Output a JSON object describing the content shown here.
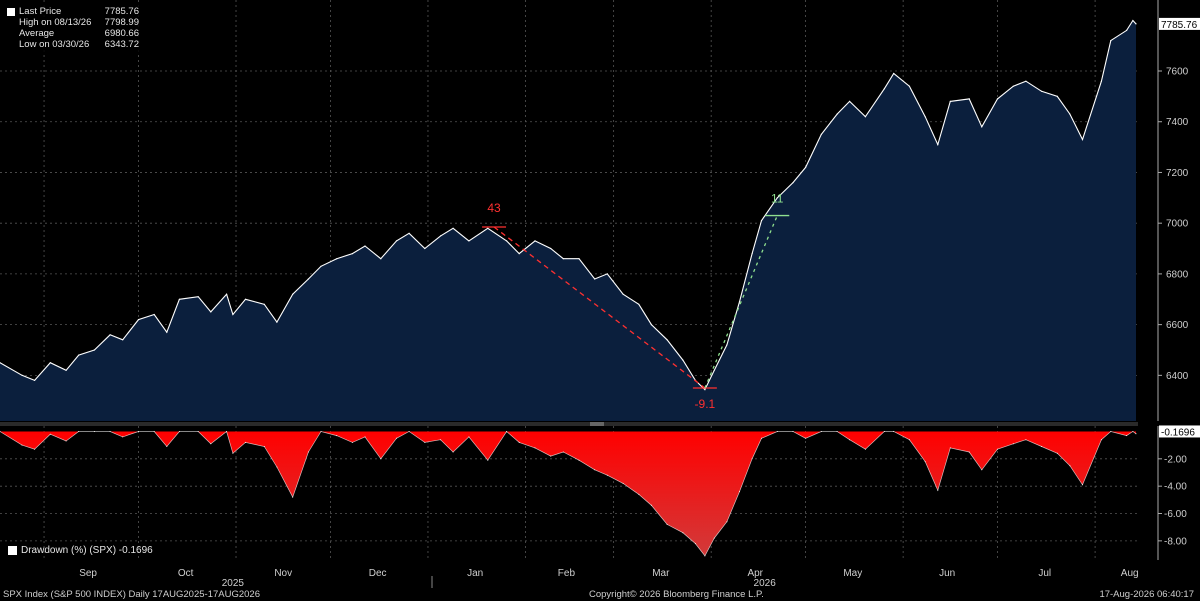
{
  "legend": {
    "items": [
      {
        "label": "Last Price",
        "value": "7785.76"
      },
      {
        "label": "High on 08/13/26",
        "value": "7798.99"
      },
      {
        "label": "Average",
        "value": "6980.66"
      },
      {
        "label": "Low on 03/30/26",
        "value": "6343.72"
      }
    ]
  },
  "drawdown_legend": "Drawdown (%) (SPX) -0.1696",
  "footer": {
    "left": "SPX Index (S&P 500 INDEX) Daily 17AUG2025-17AUG2026",
    "center": "Copyright© 2026 Bloomberg Finance L.P.",
    "right": "17-Aug-2026 06:40:17"
  },
  "colors": {
    "price_fill": "#0b1f3d",
    "price_line": "#ffffff",
    "drawdown_fill": "#e00000",
    "annotation_red": "#ff3030",
    "annotation_green": "#8fe08f",
    "grid": "#555555"
  },
  "chart_data": [
    {
      "type": "area",
      "series_name": "SPX Index (S&P 500 INDEX)",
      "x_range": [
        "2025-08-18",
        "2026-08-14"
      ],
      "ylim": [
        6220,
        7880
      ],
      "yticks": [
        6400,
        6600,
        6800,
        7000,
        7200,
        7400,
        7600
      ],
      "ytick_labels": [
        "6400",
        "6600",
        "6800",
        "7000",
        "7200",
        "7400",
        "7600"
      ],
      "last_price_label": "7785.76",
      "grid": true,
      "months": [
        "Sep",
        "Oct",
        "Nov",
        "Dec",
        "Jan",
        "Feb",
        "Mar",
        "Apr",
        "May",
        "Jun",
        "Jul",
        "Aug"
      ],
      "years": [
        "2025",
        "2026"
      ],
      "points": [
        [
          "2025-08-18",
          6450
        ],
        [
          "2025-08-25",
          6400
        ],
        [
          "2025-08-29",
          6380
        ],
        [
          "2025-09-03",
          6450
        ],
        [
          "2025-09-08",
          6420
        ],
        [
          "2025-09-12",
          6480
        ],
        [
          "2025-09-17",
          6500
        ],
        [
          "2025-09-22",
          6560
        ],
        [
          "2025-09-26",
          6540
        ],
        [
          "2025-10-01",
          6620
        ],
        [
          "2025-10-06",
          6640
        ],
        [
          "2025-10-10",
          6570
        ],
        [
          "2025-10-14",
          6700
        ],
        [
          "2025-10-20",
          6710
        ],
        [
          "2025-10-24",
          6650
        ],
        [
          "2025-10-29",
          6720
        ],
        [
          "2025-10-31",
          6640
        ],
        [
          "2025-11-04",
          6700
        ],
        [
          "2025-11-10",
          6680
        ],
        [
          "2025-11-14",
          6610
        ],
        [
          "2025-11-19",
          6720
        ],
        [
          "2025-11-24",
          6780
        ],
        [
          "2025-11-28",
          6830
        ],
        [
          "2025-12-03",
          6860
        ],
        [
          "2025-12-08",
          6880
        ],
        [
          "2025-12-12",
          6910
        ],
        [
          "2025-12-17",
          6860
        ],
        [
          "2025-12-22",
          6930
        ],
        [
          "2025-12-26",
          6960
        ],
        [
          "2025-12-31",
          6900
        ],
        [
          "2026-01-05",
          6950
        ],
        [
          "2026-01-09",
          6980
        ],
        [
          "2026-01-14",
          6930
        ],
        [
          "2026-01-20",
          6980
        ],
        [
          "2026-01-26",
          6930
        ],
        [
          "2026-01-30",
          6880
        ],
        [
          "2026-02-04",
          6930
        ],
        [
          "2026-02-09",
          6900
        ],
        [
          "2026-02-13",
          6860
        ],
        [
          "2026-02-18",
          6860
        ],
        [
          "2026-02-23",
          6780
        ],
        [
          "2026-02-27",
          6800
        ],
        [
          "2026-03-04",
          6720
        ],
        [
          "2026-03-09",
          6680
        ],
        [
          "2026-03-13",
          6600
        ],
        [
          "2026-03-18",
          6540
        ],
        [
          "2026-03-23",
          6460
        ],
        [
          "2026-03-27",
          6380
        ],
        [
          "2026-03-30",
          6343.72
        ],
        [
          "2026-04-02",
          6420
        ],
        [
          "2026-04-06",
          6520
        ],
        [
          "2026-04-10",
          6690
        ],
        [
          "2026-04-14",
          6880
        ],
        [
          "2026-04-17",
          7010
        ],
        [
          "2026-04-22",
          7100
        ],
        [
          "2026-04-27",
          7160
        ],
        [
          "2026-05-01",
          7220
        ],
        [
          "2026-05-06",
          7350
        ],
        [
          "2026-05-11",
          7430
        ],
        [
          "2026-05-15",
          7480
        ],
        [
          "2026-05-20",
          7420
        ],
        [
          "2026-05-26",
          7530
        ],
        [
          "2026-05-29",
          7590
        ],
        [
          "2026-06-03",
          7540
        ],
        [
          "2026-06-08",
          7420
        ],
        [
          "2026-06-12",
          7310
        ],
        [
          "2026-06-16",
          7480
        ],
        [
          "2026-06-22",
          7490
        ],
        [
          "2026-06-26",
          7380
        ],
        [
          "2026-07-01",
          7490
        ],
        [
          "2026-07-06",
          7540
        ],
        [
          "2026-07-10",
          7560
        ],
        [
          "2026-07-15",
          7520
        ],
        [
          "2026-07-20",
          7500
        ],
        [
          "2026-07-24",
          7430
        ],
        [
          "2026-07-28",
          7330
        ],
        [
          "2026-08-03",
          7560
        ],
        [
          "2026-08-06",
          7720
        ],
        [
          "2026-08-11",
          7760
        ],
        [
          "2026-08-13",
          7798.99
        ],
        [
          "2026-08-14",
          7785.76
        ]
      ],
      "annotations": [
        {
          "label": "43",
          "type": "peak",
          "date": "2026-01-22",
          "value": 6985
        },
        {
          "label": "-9.1",
          "type": "trough",
          "date": "2026-03-30",
          "value": 6350
        },
        {
          "label": "11",
          "type": "rebound",
          "date": "2026-04-22",
          "value": 7030
        }
      ]
    },
    {
      "type": "area",
      "series_name": "Drawdown (%) (SPX)",
      "ylim": [
        -9.4,
        0.4
      ],
      "yticks": [
        -2,
        -4,
        -6,
        -8
      ],
      "ytick_labels": [
        "-2.00",
        "-4.00",
        "-6.00",
        "-8.00"
      ],
      "last_value_label": "-0.1696",
      "points": [
        [
          "2025-08-18",
          0
        ],
        [
          "2025-08-25",
          -1.0
        ],
        [
          "2025-08-29",
          -1.3
        ],
        [
          "2025-09-03",
          -0.2
        ],
        [
          "2025-09-08",
          -0.7
        ],
        [
          "2025-09-12",
          0
        ],
        [
          "2025-09-17",
          0
        ],
        [
          "2025-09-22",
          0
        ],
        [
          "2025-09-26",
          -0.4
        ],
        [
          "2025-10-01",
          0
        ],
        [
          "2025-10-06",
          0
        ],
        [
          "2025-10-10",
          -1.1
        ],
        [
          "2025-10-14",
          0
        ],
        [
          "2025-10-20",
          0
        ],
        [
          "2025-10-24",
          -0.9
        ],
        [
          "2025-10-29",
          0
        ],
        [
          "2025-10-31",
          -1.6
        ],
        [
          "2025-11-04",
          -0.8
        ],
        [
          "2025-11-10",
          -1.1
        ],
        [
          "2025-11-14",
          -2.6
        ],
        [
          "2025-11-19",
          -4.8
        ],
        [
          "2025-11-24",
          -1.5
        ],
        [
          "2025-11-28",
          0
        ],
        [
          "2025-12-03",
          -0.3
        ],
        [
          "2025-12-08",
          -0.8
        ],
        [
          "2025-12-12",
          -0.4
        ],
        [
          "2025-12-17",
          -2.0
        ],
        [
          "2025-12-22",
          -0.5
        ],
        [
          "2025-12-26",
          0
        ],
        [
          "2025-12-31",
          -0.8
        ],
        [
          "2026-01-05",
          -0.6
        ],
        [
          "2026-01-09",
          -1.5
        ],
        [
          "2026-01-14",
          -0.4
        ],
        [
          "2026-01-20",
          -2.1
        ],
        [
          "2026-01-26",
          0
        ],
        [
          "2026-01-30",
          -0.8
        ],
        [
          "2026-02-04",
          -1.2
        ],
        [
          "2026-02-09",
          -1.8
        ],
        [
          "2026-02-13",
          -1.5
        ],
        [
          "2026-02-18",
          -2.1
        ],
        [
          "2026-02-23",
          -2.8
        ],
        [
          "2026-02-27",
          -3.2
        ],
        [
          "2026-03-04",
          -3.8
        ],
        [
          "2026-03-09",
          -4.6
        ],
        [
          "2026-03-13",
          -5.4
        ],
        [
          "2026-03-18",
          -6.8
        ],
        [
          "2026-03-23",
          -7.4
        ],
        [
          "2026-03-27",
          -8.2
        ],
        [
          "2026-03-30",
          -9.1
        ],
        [
          "2026-04-02",
          -7.8
        ],
        [
          "2026-04-06",
          -6.6
        ],
        [
          "2026-04-10",
          -4.4
        ],
        [
          "2026-04-14",
          -2.0
        ],
        [
          "2026-04-17",
          -0.5
        ],
        [
          "2026-04-22",
          0
        ],
        [
          "2026-04-27",
          0
        ],
        [
          "2026-05-01",
          -0.5
        ],
        [
          "2026-05-06",
          0
        ],
        [
          "2026-05-11",
          0
        ],
        [
          "2026-05-15",
          -0.6
        ],
        [
          "2026-05-20",
          -1.3
        ],
        [
          "2026-05-26",
          0
        ],
        [
          "2026-05-29",
          0
        ],
        [
          "2026-06-03",
          -0.6
        ],
        [
          "2026-06-08",
          -2.2
        ],
        [
          "2026-06-12",
          -4.3
        ],
        [
          "2026-06-16",
          -1.2
        ],
        [
          "2026-06-22",
          -1.5
        ],
        [
          "2026-06-26",
          -2.8
        ],
        [
          "2026-07-01",
          -1.3
        ],
        [
          "2026-07-06",
          -0.9
        ],
        [
          "2026-07-10",
          -0.6
        ],
        [
          "2026-07-15",
          -1.1
        ],
        [
          "2026-07-20",
          -1.6
        ],
        [
          "2026-07-24",
          -2.5
        ],
        [
          "2026-07-28",
          -3.9
        ],
        [
          "2026-08-03",
          -0.6
        ],
        [
          "2026-08-06",
          0
        ],
        [
          "2026-08-11",
          -0.3
        ],
        [
          "2026-08-13",
          0
        ],
        [
          "2026-08-14",
          -0.17
        ]
      ]
    }
  ]
}
